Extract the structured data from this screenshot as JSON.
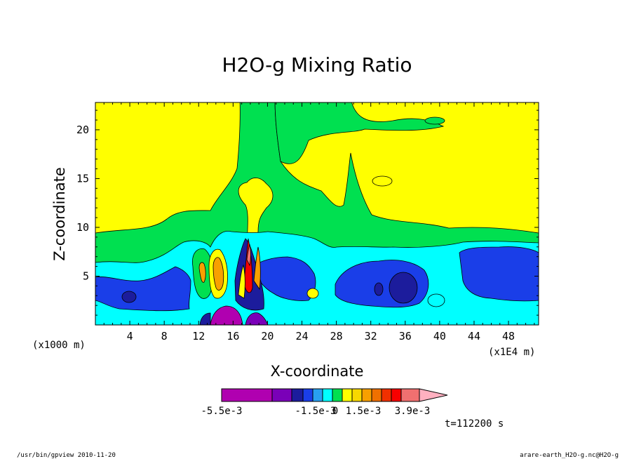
{
  "chart_data": {
    "type": "heatmap",
    "title": "H2O-g Mixing Ratio",
    "xlabel": "X-coordinate",
    "ylabel": "Z-coordinate",
    "x_unit_note": "(x1000 m)",
    "x_scale_note": "(x1E4 m)",
    "xlim": [
      0,
      51.5
    ],
    "ylim": [
      0,
      22.8
    ],
    "x_ticks": [
      "4",
      "8",
      "12",
      "16",
      "20",
      "24",
      "28",
      "32",
      "36",
      "40",
      "44",
      "48"
    ],
    "y_ticks": [
      "5",
      "10",
      "15",
      "20"
    ],
    "time_label": "t=112200 s",
    "colorbar": {
      "colors": [
        "#b000b0",
        "#7a00b8",
        "#1c1c9c",
        "#1a3ee8",
        "#28a0f0",
        "#00ffff",
        "#00e050",
        "#ffff00",
        "#f8d800",
        "#f8a000",
        "#f07000",
        "#f03000",
        "#f80000",
        "#f07070",
        "#ffb0c0"
      ],
      "labels": [
        "-5.5e-3",
        "-1.5e-3",
        "0",
        "1.5e-3",
        "3.9e-3"
      ]
    },
    "footer_left": "/usr/bin/gpview   2010-11-20",
    "footer_right": "arare-earth_H2O-g.nc@H2O-g"
  }
}
